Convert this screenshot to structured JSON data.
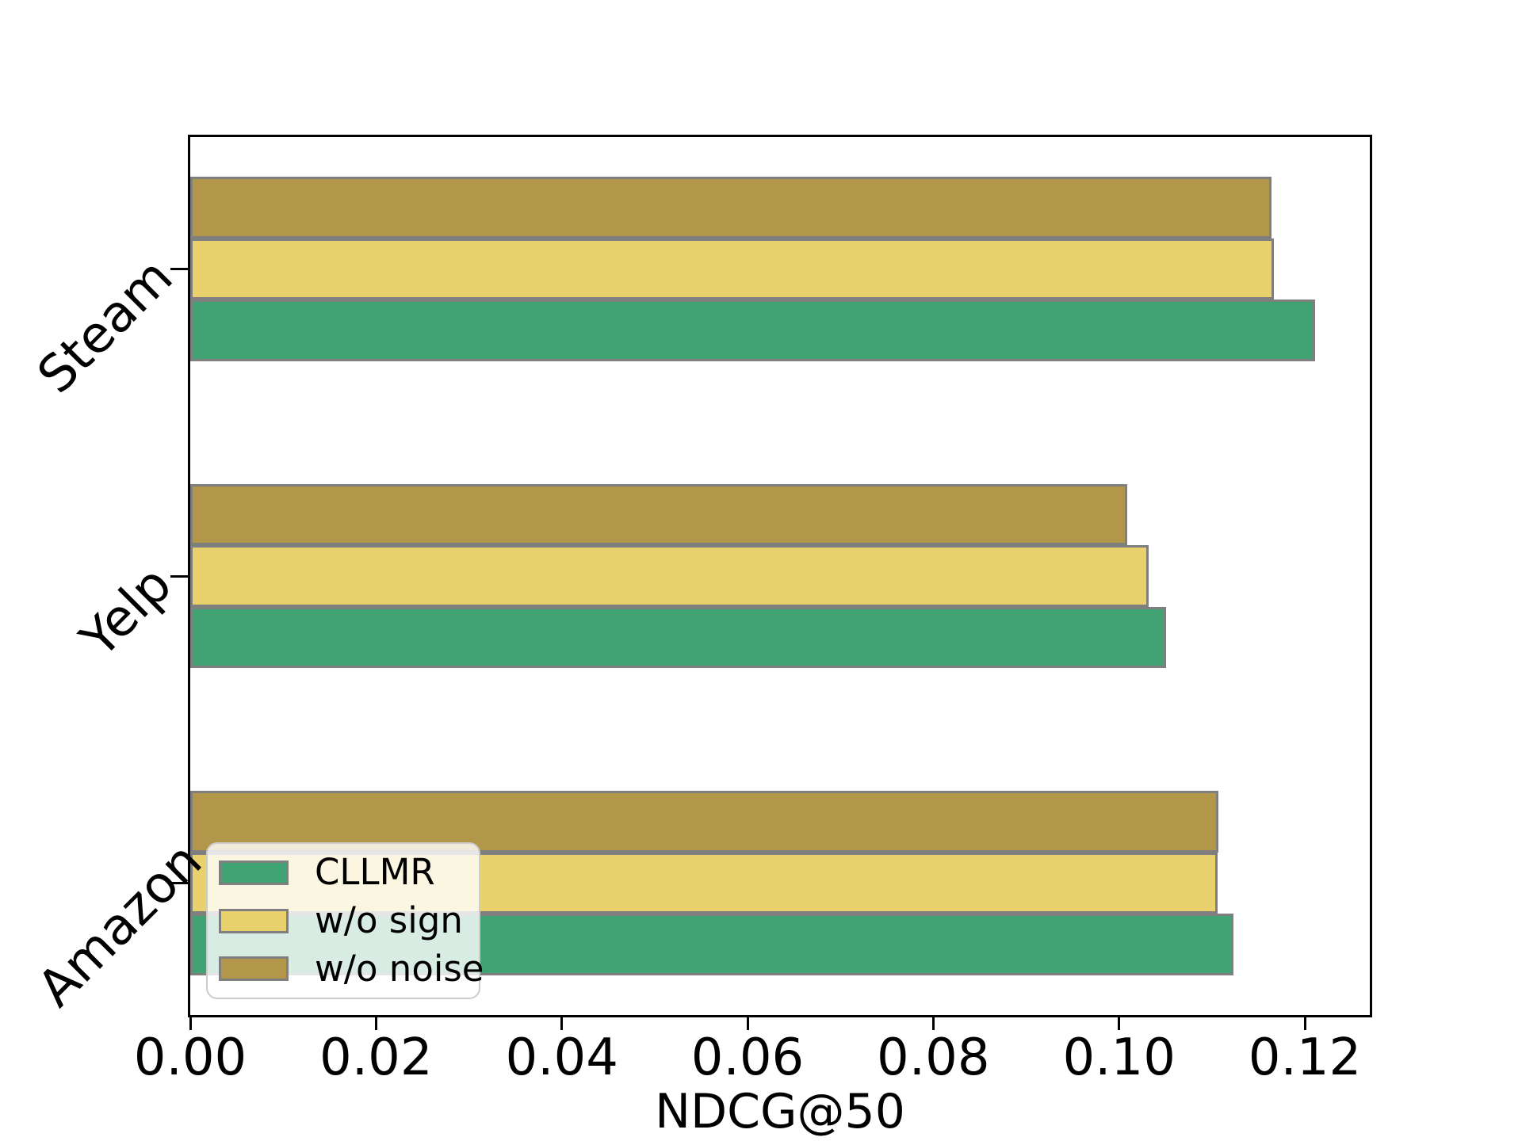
{
  "chart_data": {
    "type": "bar",
    "orientation": "horizontal",
    "title": "",
    "xlabel": "NDCG@50",
    "ylabel": "",
    "grid": false,
    "xlim": [
      0,
      0.127
    ],
    "x_ticks": {
      "values": [
        0.0,
        0.02,
        0.04,
        0.06,
        0.08,
        0.1,
        0.12
      ],
      "labels": [
        "0.00",
        "0.02",
        "0.04",
        "0.06",
        "0.08",
        "0.10",
        "0.12"
      ]
    },
    "categories_top_to_bottom": [
      "Steam",
      "Yelp",
      "Amazon"
    ],
    "series": [
      {
        "name": "CLLMR",
        "color": "#41A274",
        "values_by_category": {
          "Steam": 0.1211,
          "Yelp": 0.1051,
          "Amazon": 0.1123
        }
      },
      {
        "name": "w/o sign",
        "color": "#E9D26E",
        "values_by_category": {
          "Steam": 0.1167,
          "Yelp": 0.1032,
          "Amazon": 0.1106
        }
      },
      {
        "name": "w/o noise",
        "color": "#B2964A",
        "values_by_category": {
          "Steam": 0.1164,
          "Yelp": 0.1009,
          "Amazon": 0.1107
        }
      }
    ],
    "legend": {
      "position": "lower left",
      "entries": [
        "CLLMR",
        "w/o sign",
        "w/o noise"
      ]
    },
    "styles": {
      "bar_edge_color": "#7F7F7F",
      "axis_color": "#000000",
      "legend_bg": "rgba(255,255,255,0.8)",
      "legend_border": "#CCCCCC"
    }
  }
}
